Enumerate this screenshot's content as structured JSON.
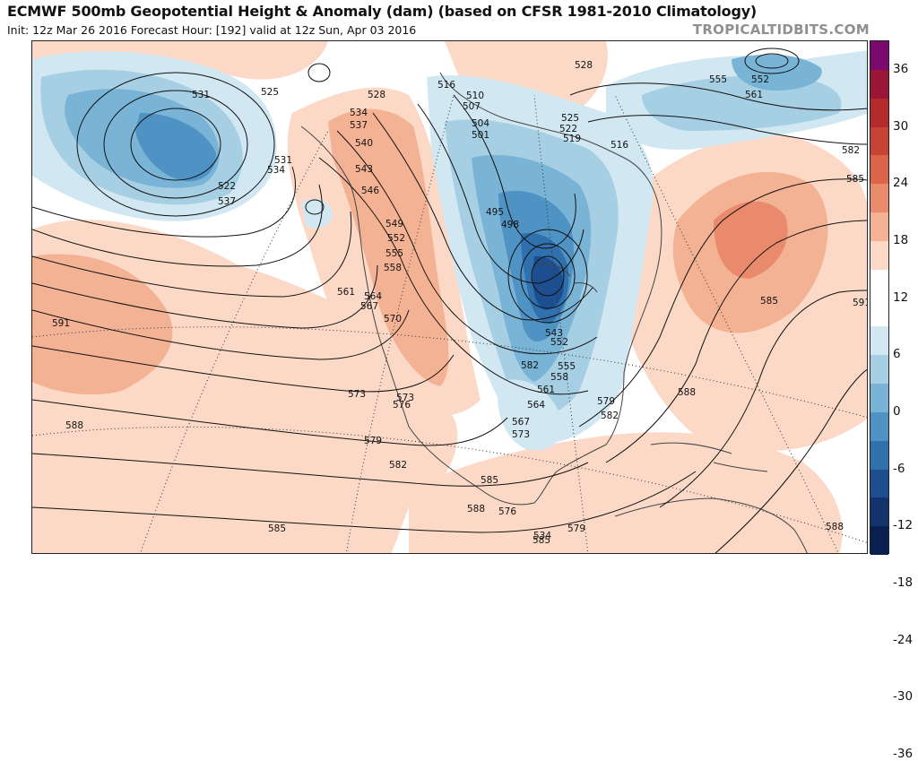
{
  "header": {
    "title": "ECMWF 500mb Geopotential Height & Anomaly (dam) (based on CFSR 1981-2010 Climatology)",
    "subtitle": "Init: 12z Mar 26 2016   Forecast Hour: [192]   valid at 12z Sun, Apr 03 2016",
    "credit": "TROPICALTIDBITS.COM"
  },
  "colorbar": {
    "ticks": [
      "36",
      "30",
      "24",
      "18",
      "12",
      "6",
      "0",
      "-6",
      "-12",
      "-18",
      "-24",
      "-30",
      "-36"
    ],
    "colors": [
      "#7b0a6e",
      "#9a1636",
      "#b52a2c",
      "#c94236",
      "#dc6448",
      "#ea8a6c",
      "#f4b294",
      "#fbd9c6",
      "#ffffff",
      "#ffffff",
      "#d1e7f1",
      "#a6cfe3",
      "#79b3d6",
      "#4f92c4",
      "#2f70ad",
      "#1d4f90",
      "#12336b",
      "#0a1f4f"
    ]
  },
  "map": {
    "colors": {
      "warm_light": "#fbd9c6",
      "warm": "#f4b294",
      "warm_strong": "#ea8a6c",
      "cool_light": "#d1e7f1",
      "cool": "#a6cfe3",
      "cool_mid": "#79b3d6",
      "cool_strong": "#4f92c4",
      "cool_deep": "#2f70ad",
      "cool_core": "#1d4f90",
      "cool_darkest": "#0a1f4f",
      "contour": "#111111",
      "land": "#444444"
    },
    "contour_labels": [
      "531",
      "525",
      "528",
      "534",
      "537",
      "540",
      "543",
      "546",
      "549",
      "552",
      "555",
      "558",
      "561",
      "564",
      "567",
      "570",
      "573",
      "576",
      "579",
      "582",
      "585",
      "588",
      "591",
      "522",
      "537",
      "534",
      "531",
      "516",
      "510",
      "507",
      "504",
      "501",
      "498",
      "495",
      "519",
      "522",
      "525",
      "528",
      "516",
      "555",
      "552",
      "561",
      "582",
      "585",
      "585",
      "588",
      "591",
      "588",
      "579",
      "582",
      "585",
      "588",
      "585",
      "573",
      "567",
      "564",
      "561",
      "558",
      "555",
      "552",
      "543",
      "534",
      "579",
      "582",
      "573",
      "576",
      "588"
    ]
  }
}
